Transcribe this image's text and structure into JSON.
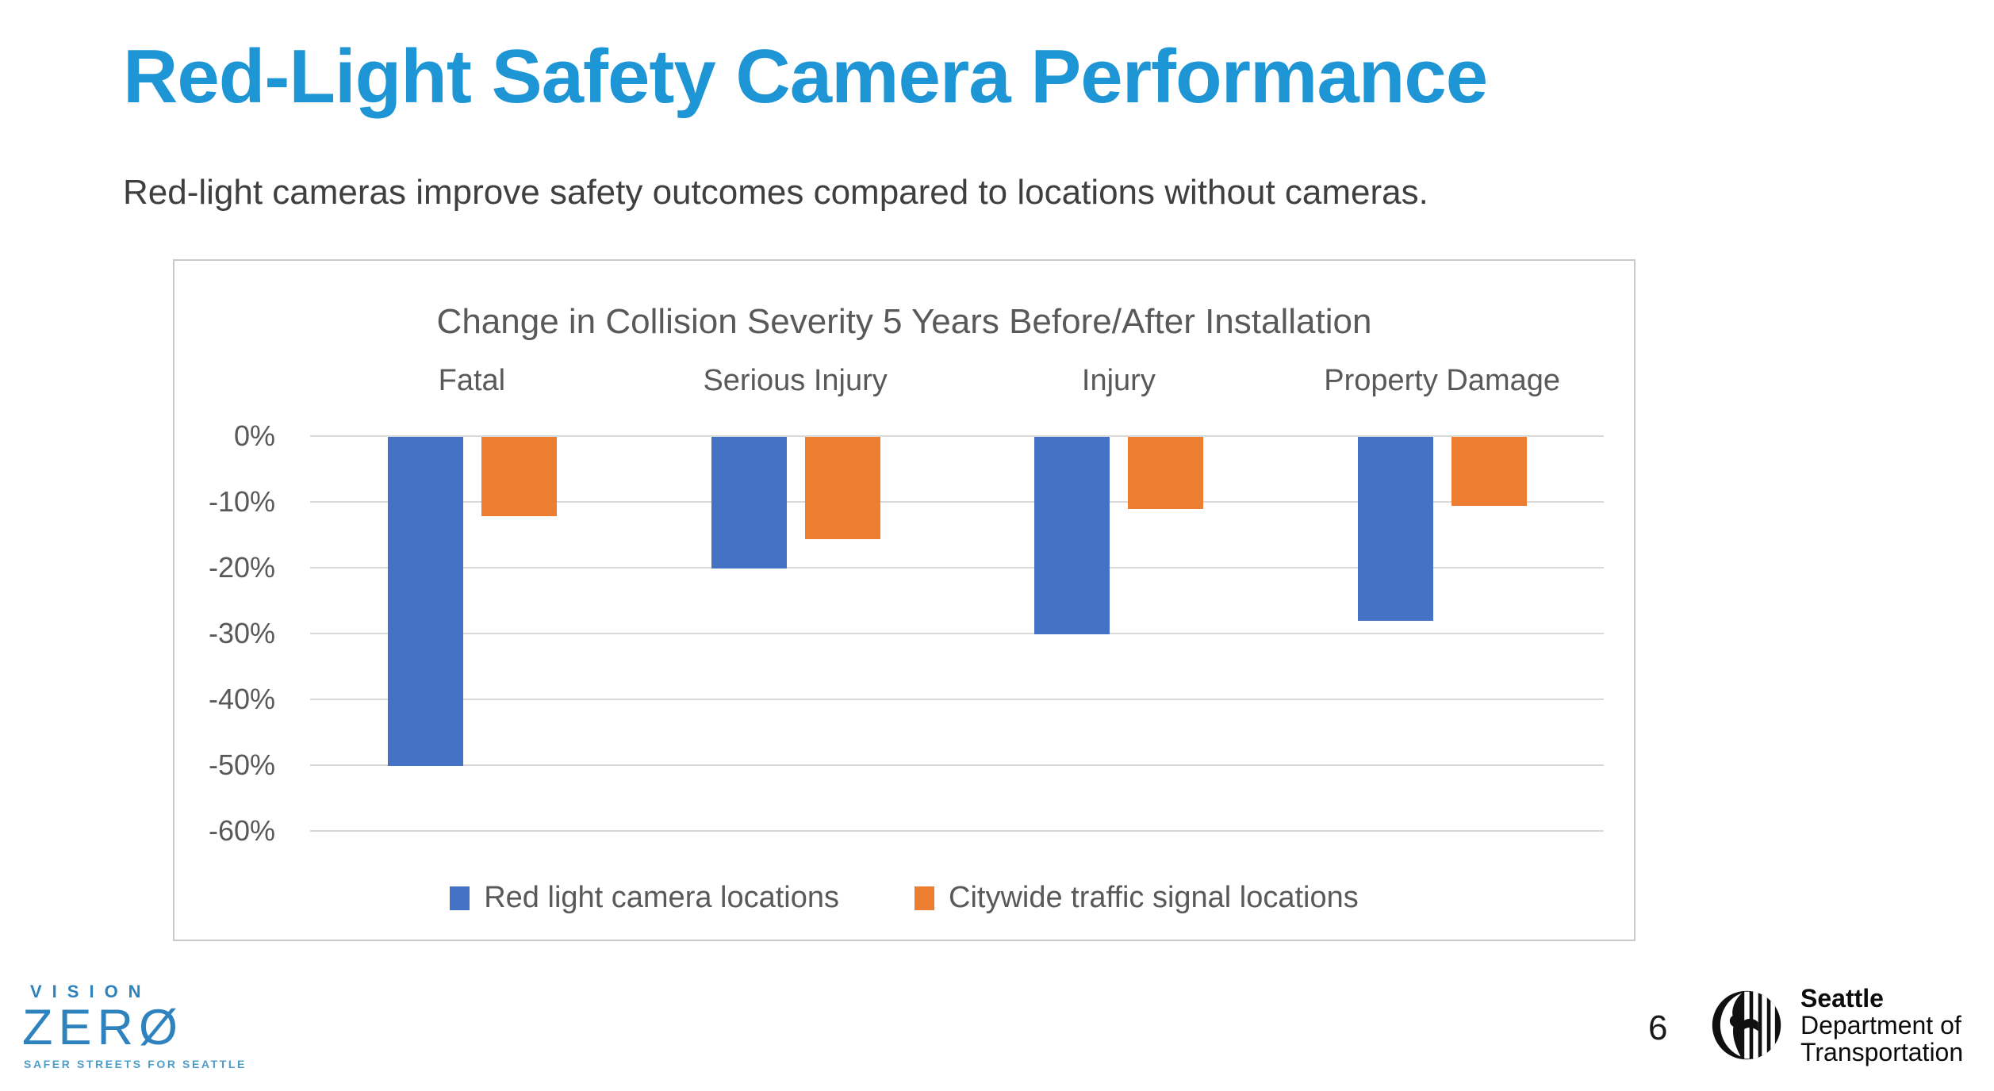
{
  "slide": {
    "title": "Red-Light Safety Camera Performance",
    "subtitle": "Red-light cameras improve safety outcomes compared to locations without cameras.",
    "page_number": "6"
  },
  "chart_data": {
    "type": "bar",
    "title": "Change in Collision Severity 5 Years Before/After Installation",
    "categories": [
      "Fatal",
      "Serious Injury",
      "Injury",
      "Property Damage"
    ],
    "series": [
      {
        "name": "Red light camera locations",
        "color": "#4472C4",
        "values": [
          -50,
          -20,
          -30,
          -28
        ]
      },
      {
        "name": "Citywide traffic signal locations",
        "color": "#ED7D31",
        "values": [
          -12,
          -15.5,
          -11,
          -10.5
        ]
      }
    ],
    "y_ticks": [
      {
        "label": "0%",
        "value": 0
      },
      {
        "label": "-10%",
        "value": -10
      },
      {
        "label": "-20%",
        "value": -20
      },
      {
        "label": "-30%",
        "value": -30
      },
      {
        "label": "-40%",
        "value": -40
      },
      {
        "label": "-50%",
        "value": -50
      },
      {
        "label": "-60%",
        "value": -60
      }
    ],
    "ylim": [
      -60,
      0
    ],
    "grid": true,
    "category_labels_position": "top",
    "legend_position": "bottom"
  },
  "footer": {
    "vision_zero": {
      "line1": "VISION",
      "line2": "ZERØ",
      "tagline": "SAFER STREETS FOR SEATTLE"
    },
    "sdot": {
      "line1": "Seattle",
      "line2": "Department of",
      "line3": "Transportation"
    }
  },
  "colors": {
    "title_blue": "#1E95D4",
    "bar_blue": "#4472C4",
    "bar_orange": "#ED7D31",
    "gridline": "#D9D9D9",
    "chart_text": "#595959",
    "body_text": "#3F3F3F",
    "chart_border": "#C9C9C9",
    "vision_zero_blue": "#2E82BE"
  }
}
